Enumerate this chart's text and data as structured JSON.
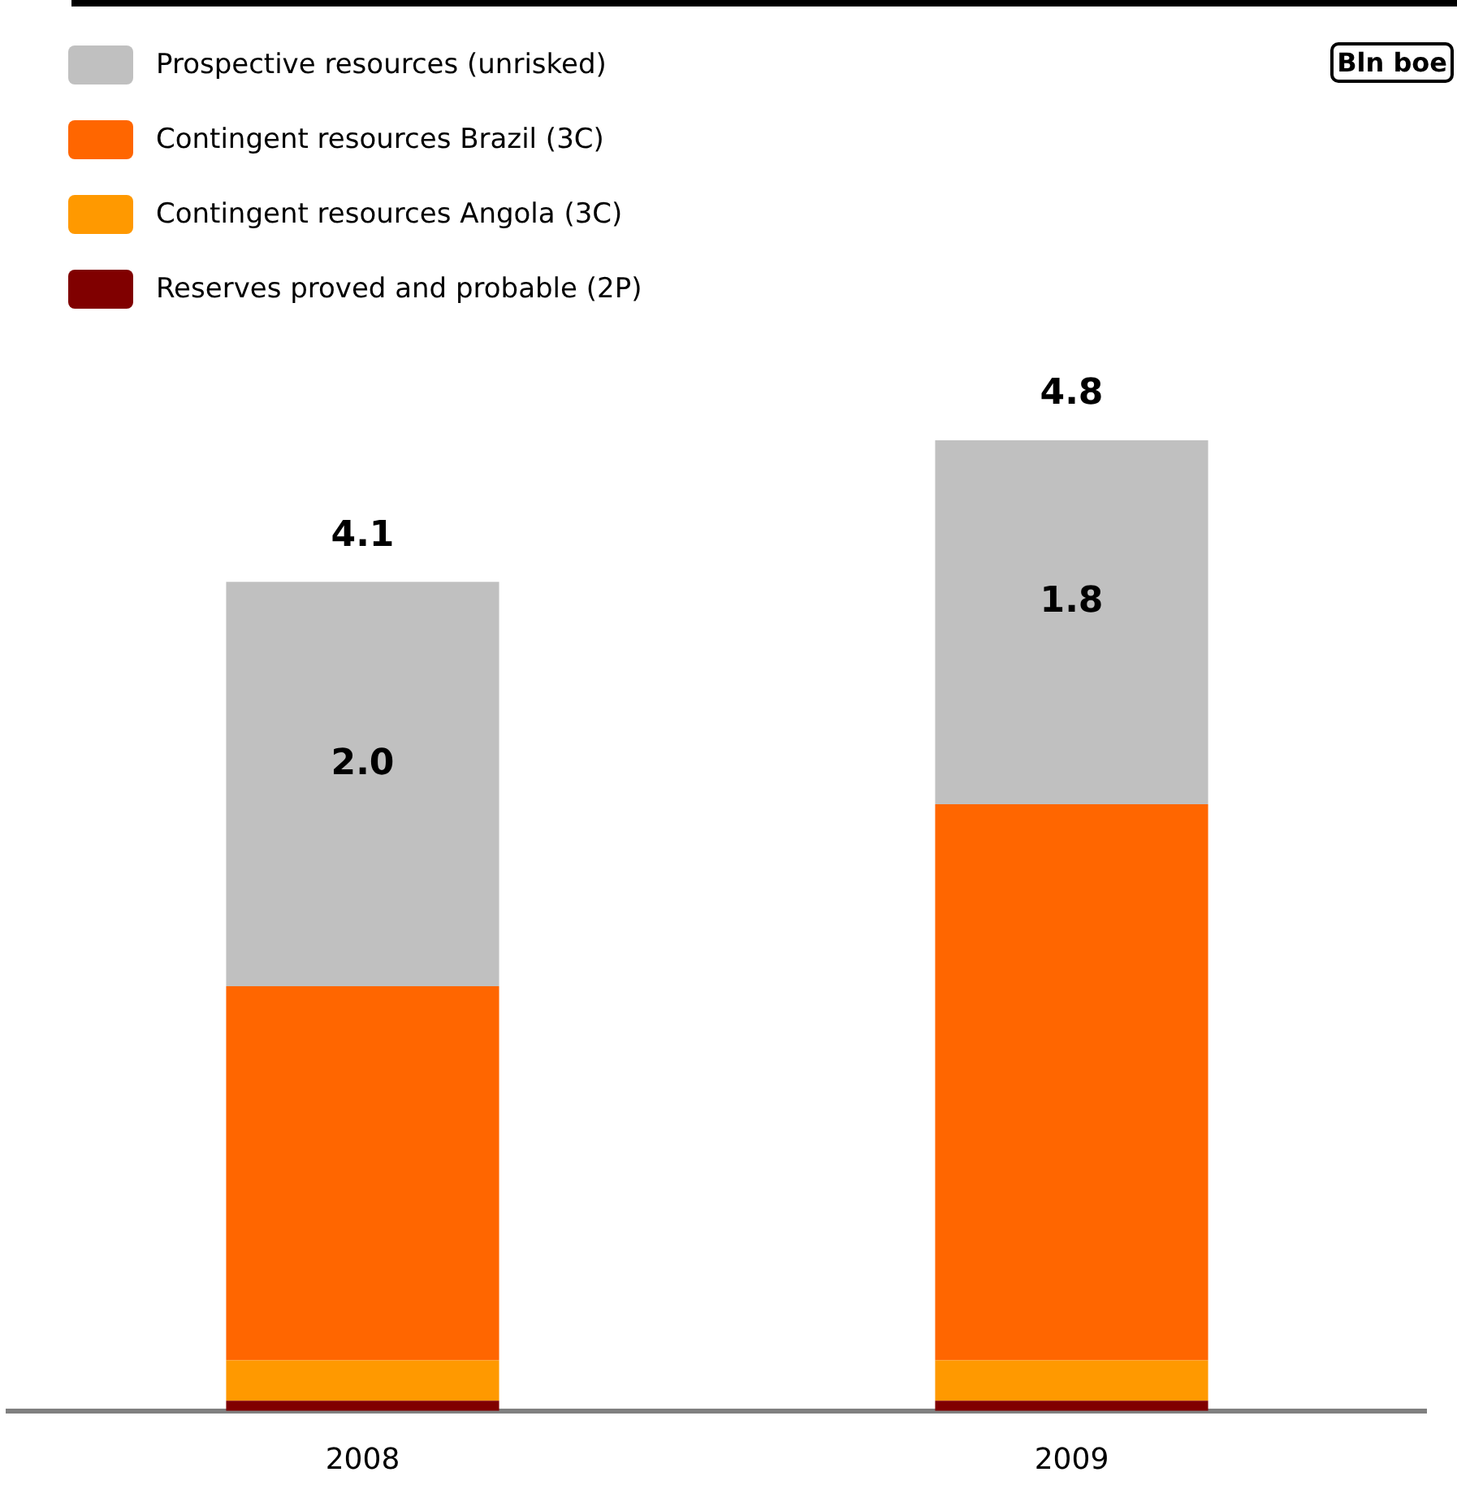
{
  "chart_data": {
    "type": "bar",
    "stacked": true,
    "categories": [
      "2008",
      "2009"
    ],
    "series": [
      {
        "name": "Reserves proved and probable (2P)",
        "color": "#800000",
        "values": [
          0.05,
          0.05
        ]
      },
      {
        "name": "Contingent resources Angola (3C)",
        "color": "#ff9900",
        "values": [
          0.2,
          0.2
        ]
      },
      {
        "name": "Contingent resources Brazil (3C)",
        "color": "#ff6600",
        "values": [
          1.85,
          2.75
        ]
      },
      {
        "name": "Prospective resources (unrisked)",
        "color": "#c0c0c0",
        "values": [
          2.0,
          1.8
        ],
        "value_labels": [
          "2.0",
          "1.8"
        ]
      }
    ],
    "totals": [
      "4.1",
      "4.8"
    ],
    "legend": "top left",
    "annotations": [
      "Bln boe"
    ]
  }
}
